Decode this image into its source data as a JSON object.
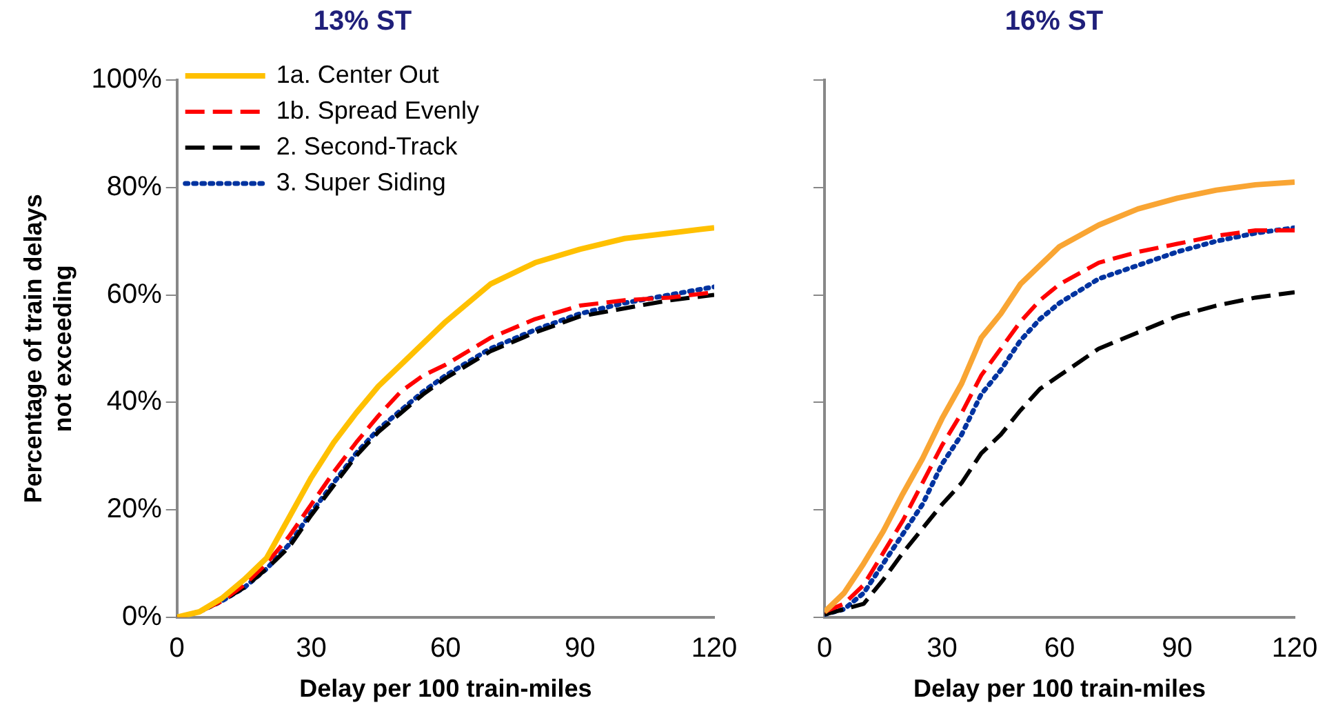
{
  "chart_data": [
    {
      "type": "line",
      "title": "13% ST",
      "xlabel": "Delay per 100 train-miles",
      "ylabel": "Percentage of train delays not exceeding",
      "x": [
        0,
        5,
        10,
        15,
        20,
        25,
        30,
        35,
        40,
        45,
        50,
        55,
        60,
        70,
        80,
        90,
        100,
        110,
        120
      ],
      "xlim": [
        0,
        120
      ],
      "xticks": [
        0,
        30,
        60,
        90,
        120
      ],
      "ylim": [
        0,
        100
      ],
      "yticks": [
        {
          "value": 0,
          "label": "0%"
        },
        {
          "value": 20,
          "label": "20%"
        },
        {
          "value": 40,
          "label": "40%"
        },
        {
          "value": 60,
          "label": "60%"
        },
        {
          "value": 80,
          "label": "80%"
        },
        {
          "value": 100,
          "label": "100%"
        }
      ],
      "grid": false,
      "legend": "top left",
      "marker": "none",
      "series": [
        {
          "name": "1a. Center Out",
          "color": "#ffc000",
          "line_style": "solid",
          "values": [
            0,
            1,
            3.5,
            7,
            11,
            18.5,
            26,
            32.5,
            38,
            43,
            47,
            51,
            55,
            62,
            66,
            68.5,
            70.5,
            71.5,
            72.5
          ]
        },
        {
          "name": "1b. Spread Evenly",
          "color": "#ff0000",
          "line_style": "dashed",
          "values": [
            0,
            1,
            3,
            6,
            10,
            15,
            21,
            27,
            32.5,
            37.5,
            42,
            45,
            47,
            52,
            55.5,
            58,
            59,
            59.5,
            60.5
          ]
        },
        {
          "name": "2. Second-Track",
          "color": "#000000",
          "line_style": "dashed",
          "values": [
            0,
            1,
            3,
            5.5,
            9,
            13,
            19,
            24.5,
            30,
            34.5,
            38,
            41.5,
            44.5,
            49.5,
            53,
            56,
            57.5,
            59,
            60
          ]
        },
        {
          "name": "3. Super Siding",
          "color": "#0033a0",
          "line_style": "dotted",
          "values": [
            0,
            1,
            3,
            5.5,
            9,
            13.5,
            19.5,
            25,
            30.5,
            35,
            38.5,
            42,
            45,
            50,
            53.5,
            56.5,
            58.5,
            60,
            61.5
          ]
        }
      ]
    },
    {
      "type": "line",
      "title": "16% ST",
      "xlabel": "Delay per 100 train-miles",
      "x": [
        0,
        5,
        10,
        15,
        20,
        25,
        30,
        35,
        40,
        45,
        50,
        55,
        60,
        70,
        80,
        90,
        100,
        110,
        120
      ],
      "xlim": [
        0,
        120
      ],
      "xticks": [
        0,
        30,
        60,
        90,
        120
      ],
      "ylim": [
        0,
        100
      ],
      "yticks": [
        {
          "value": 0,
          "label": null
        },
        {
          "value": 20,
          "label": null
        },
        {
          "value": 40,
          "label": null
        },
        {
          "value": 60,
          "label": null
        },
        {
          "value": 80,
          "label": null
        },
        {
          "value": 100,
          "label": null
        }
      ],
      "tick_labels": "x",
      "grid": false,
      "marker": "none",
      "series": [
        {
          "color": "#f9a533",
          "line_style": "solid",
          "values": [
            1,
            4.5,
            10,
            16,
            23,
            29.5,
            37,
            43.5,
            52,
            56.5,
            62,
            65.5,
            69,
            73,
            76,
            78,
            79.5,
            80.5,
            81
          ]
        },
        {
          "color": "#ff0000",
          "line_style": "dashed",
          "values": [
            1,
            2.5,
            6,
            12,
            18,
            25,
            32,
            38,
            45,
            50,
            55,
            59,
            62,
            66,
            68,
            69.5,
            71,
            72,
            72
          ]
        },
        {
          "color": "#000000",
          "line_style": "dashed",
          "values": [
            0.5,
            1.5,
            2.5,
            7,
            12,
            16.5,
            21,
            25,
            30.5,
            34,
            38.5,
            42.5,
            45,
            50,
            53,
            56,
            58,
            59.5,
            60.5
          ]
        },
        {
          "color": "#0033a0",
          "line_style": "dotted",
          "values": [
            0.5,
            1.5,
            4.5,
            10,
            15.5,
            21,
            28.5,
            34,
            41.5,
            46,
            51.5,
            55.5,
            58.5,
            63,
            65.5,
            68,
            70,
            71.5,
            72.5
          ]
        }
      ]
    }
  ]
}
